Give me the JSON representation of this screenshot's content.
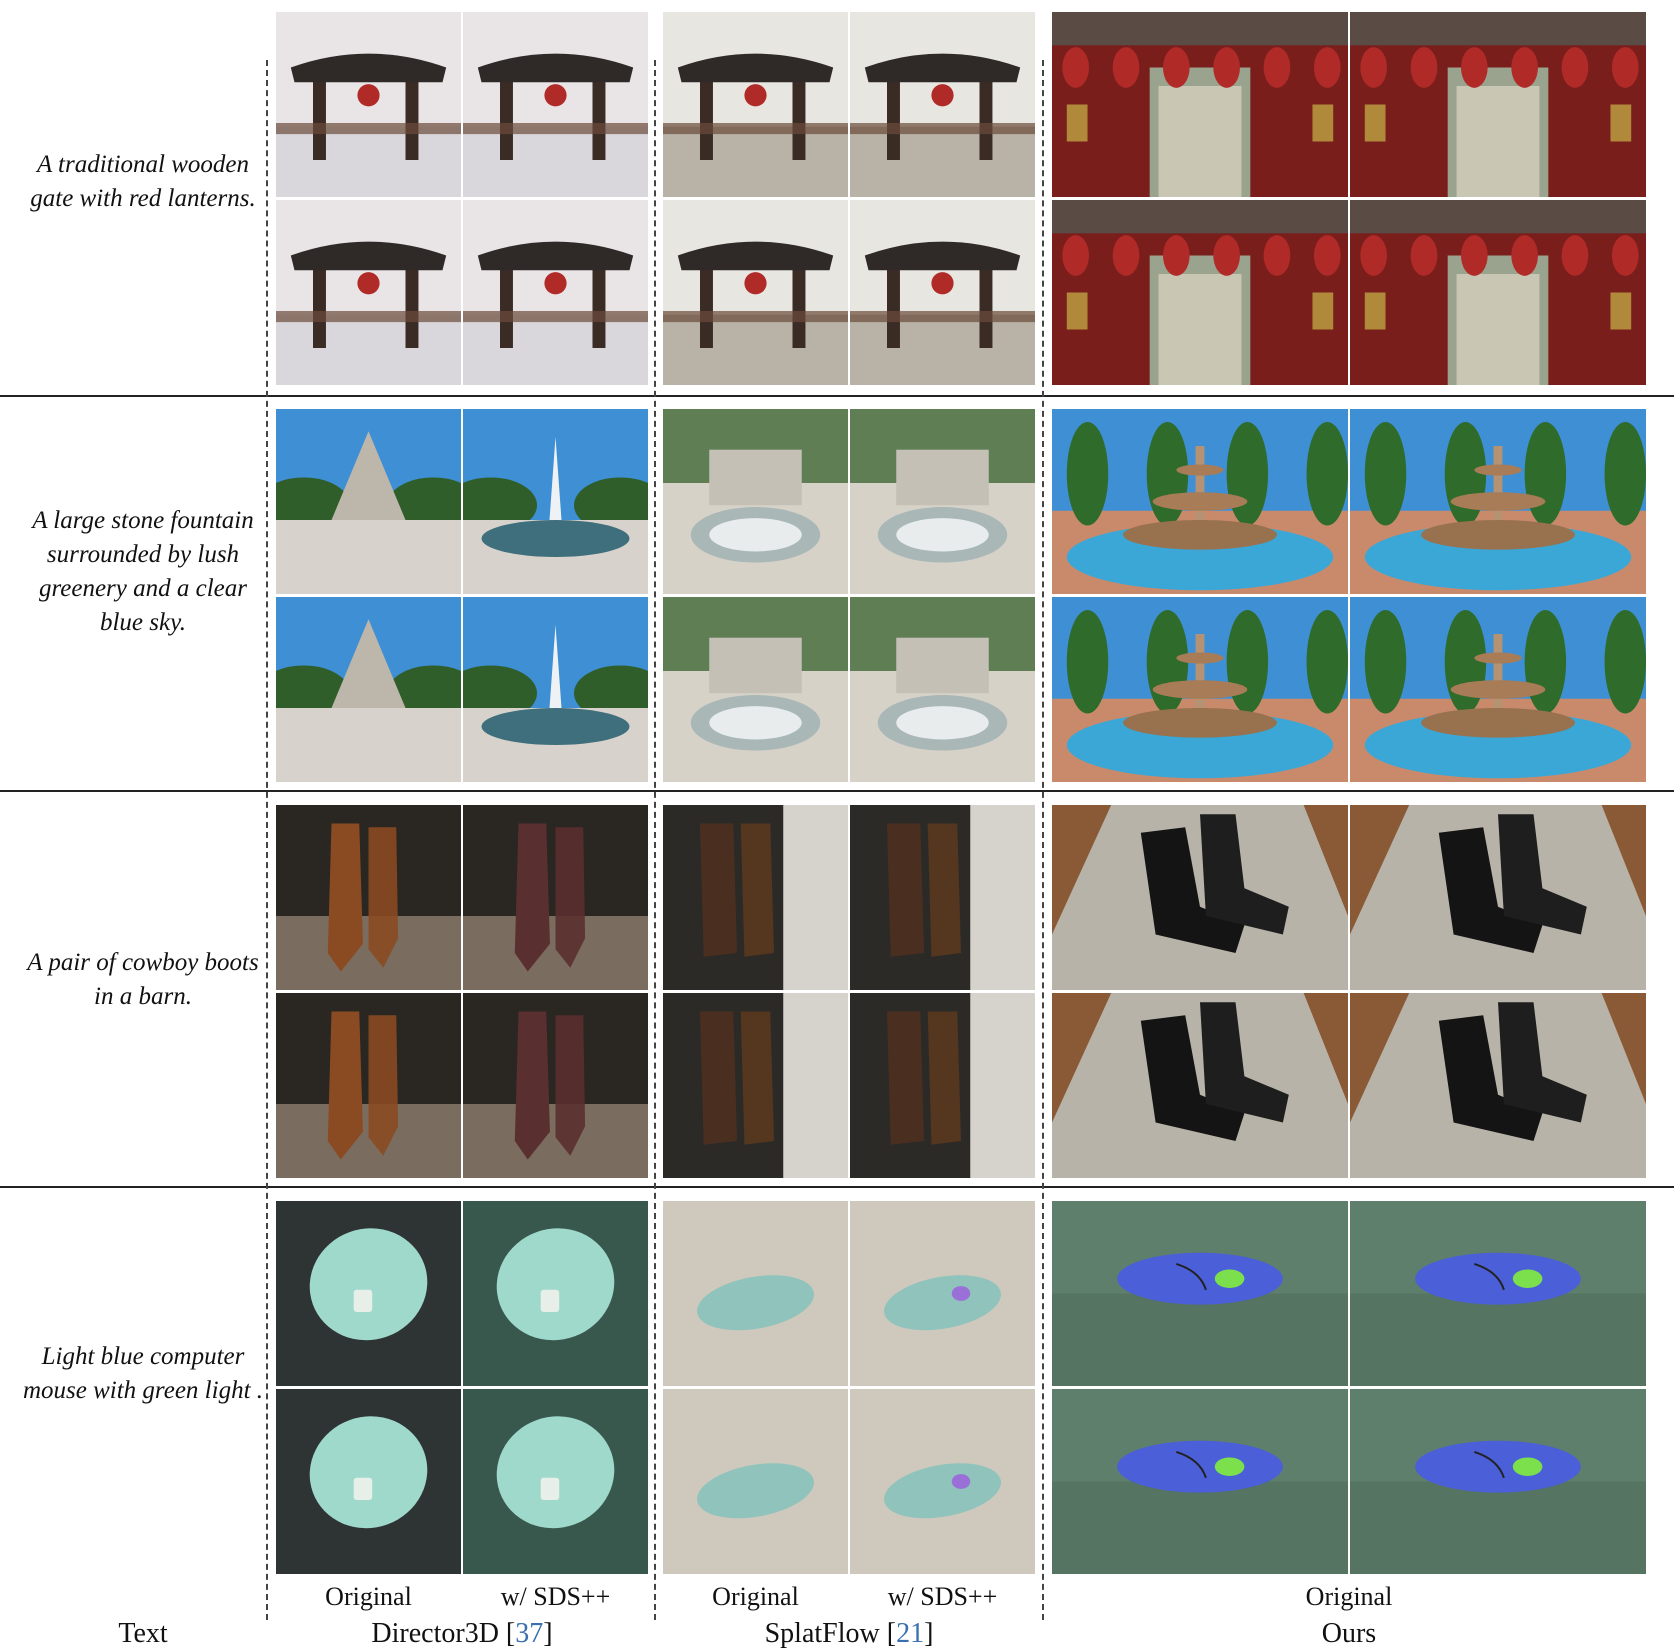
{
  "rows": [
    {
      "prompt": "A traditional wooden gate with red lanterns."
    },
    {
      "prompt": "A large stone fountain surrounded by lush greenery and a clear blue sky."
    },
    {
      "prompt": "A pair of cowboy boots in a barn."
    },
    {
      "prompt": "Light blue computer mouse with green light ."
    }
  ],
  "footer": {
    "text_col": "Text",
    "director3d_name": "Director3D",
    "director3d_ref": "37",
    "splatflow_name": "SplatFlow",
    "splatflow_ref": "21",
    "ours_name": "Ours",
    "sub_original": "Original",
    "sub_sds": "w/ SDS++",
    "open_bracket": "[",
    "close_bracket": "]"
  },
  "colors": {
    "link_blue": "#3a6fb0",
    "gate_red": "#b02a28",
    "fountain_blue": "#3e8fd4",
    "boot_brown": "#8a4a22",
    "mouse_blue": "#4a5fd8",
    "mouse_teal": "#9fd9cc"
  }
}
